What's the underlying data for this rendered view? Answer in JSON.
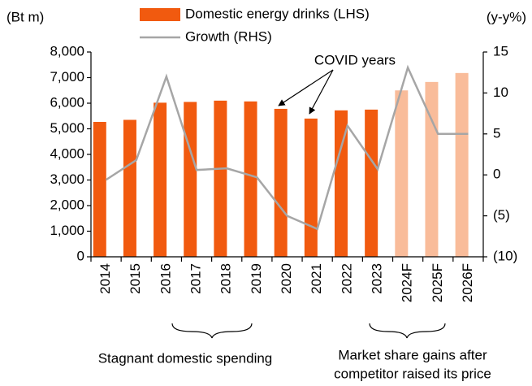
{
  "chart_data": {
    "type": "bar",
    "y_label": "(Bt m)",
    "y2_label": "(y-y%)",
    "categories": [
      "2014",
      "2015",
      "2016",
      "2017",
      "2018",
      "2019",
      "2020",
      "2021",
      "2022",
      "2023",
      "2024F",
      "2025F",
      "2026F"
    ],
    "series": [
      {
        "name": "Domestic energy drinks (LHS)",
        "type": "bar",
        "axis": "y",
        "colors": [
          "#f15a0f",
          "#f15a0f",
          "#f15a0f",
          "#f15a0f",
          "#f15a0f",
          "#f15a0f",
          "#f15a0f",
          "#f15a0f",
          "#f15a0f",
          "#f15a0f",
          "#f9bc9a",
          "#f9bc9a",
          "#f9bc9a"
        ],
        "color": "#f15a0f",
        "values": [
          5270,
          5350,
          6020,
          6050,
          6100,
          6070,
          5780,
          5400,
          5720,
          5750,
          6500,
          6830,
          7180
        ]
      },
      {
        "name": "Growth (RHS)",
        "type": "line",
        "axis": "y2",
        "color": "#a6a6a6",
        "values": [
          -0.6,
          1.8,
          12.0,
          0.6,
          0.8,
          -0.3,
          -5.0,
          -6.6,
          6.0,
          0.7,
          13.1,
          5.0,
          5.0
        ]
      }
    ],
    "ylim": [
      0,
      8000
    ],
    "yticks": [
      0,
      {
        "value": 1000,
        "label": "1,000"
      },
      {
        "value": 2000,
        "label": "2,000"
      },
      {
        "value": 3000,
        "label": "3,000"
      },
      {
        "value": 4000,
        "label": "4,000"
      },
      {
        "value": 5000,
        "label": "5,000"
      },
      {
        "value": 6000,
        "label": "6,000"
      },
      {
        "value": 7000,
        "label": "7,000"
      },
      {
        "value": 8000,
        "label": "8,000"
      }
    ],
    "y2lim": [
      -10,
      15
    ],
    "y2ticks": [
      {
        "value": -10,
        "label": "(10)"
      },
      {
        "value": -5,
        "label": "(5)"
      },
      0,
      5,
      10,
      15
    ],
    "grid": false,
    "legend": "top",
    "annotations": [
      "COVID years",
      "Stagnant domestic spending",
      [
        "Market share gains after",
        "competitor raised its price"
      ]
    ]
  }
}
